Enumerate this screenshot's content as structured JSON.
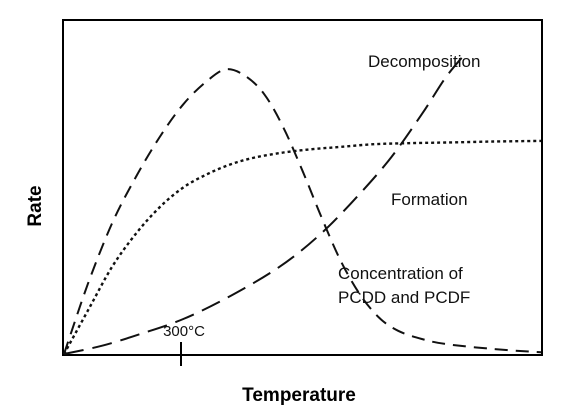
{
  "chart_data": {
    "type": "line",
    "title": "",
    "xlabel": "Temperature",
    "ylabel": "Rate",
    "xlim": [
      0,
      10
    ],
    "ylim": [
      0,
      10
    ],
    "grid": false,
    "x_tick_labels": [
      "300°C"
    ],
    "x_ticks": [
      3.8
    ],
    "series": [
      {
        "name": "Decomposition",
        "style": "long-dash",
        "color": "#111111",
        "x": [
          0,
          0.8,
          1.6,
          2.5,
          3.5,
          4.5,
          5.3,
          6.0,
          6.8,
          7.5,
          8.0,
          8.4
        ],
        "y": [
          0,
          0.25,
          0.6,
          1.05,
          1.75,
          2.6,
          3.5,
          4.5,
          5.8,
          7.2,
          8.3,
          9.0
        ]
      },
      {
        "name": "Formation",
        "style": "dotted",
        "color": "#111111",
        "x": [
          0,
          0.5,
          1.0,
          1.5,
          2.0,
          2.5,
          3.0,
          3.5,
          4.0,
          4.6,
          5.2,
          5.8,
          6.5,
          7.2,
          8.0,
          9.0,
          10.0
        ],
        "y": [
          0,
          1.3,
          2.6,
          3.6,
          4.4,
          5.0,
          5.4,
          5.7,
          5.9,
          6.05,
          6.15,
          6.22,
          6.3,
          6.33,
          6.35,
          6.38,
          6.4
        ]
      },
      {
        "name": "Concentration of PCDD and PCDF",
        "style": "dashed",
        "color": "#111111",
        "x": [
          0,
          0.5,
          1.0,
          1.5,
          2.0,
          2.5,
          3.0,
          3.4,
          3.8,
          4.2,
          4.6,
          5.0,
          5.4,
          5.8,
          6.2,
          6.6,
          7.0,
          7.5,
          8.0,
          9.0,
          10.0
        ],
        "y": [
          0,
          2.1,
          3.9,
          5.3,
          6.5,
          7.5,
          8.2,
          8.55,
          8.35,
          7.8,
          6.8,
          5.5,
          4.1,
          2.8,
          1.8,
          1.1,
          0.7,
          0.45,
          0.3,
          0.15,
          0.05
        ]
      }
    ],
    "annotations": [
      {
        "text": "Decomposition",
        "series": 0
      },
      {
        "text": "Formation",
        "series": 1
      },
      {
        "text_lines": [
          "Concentration of",
          "PCDD and PCDF"
        ],
        "series": 2
      }
    ]
  }
}
